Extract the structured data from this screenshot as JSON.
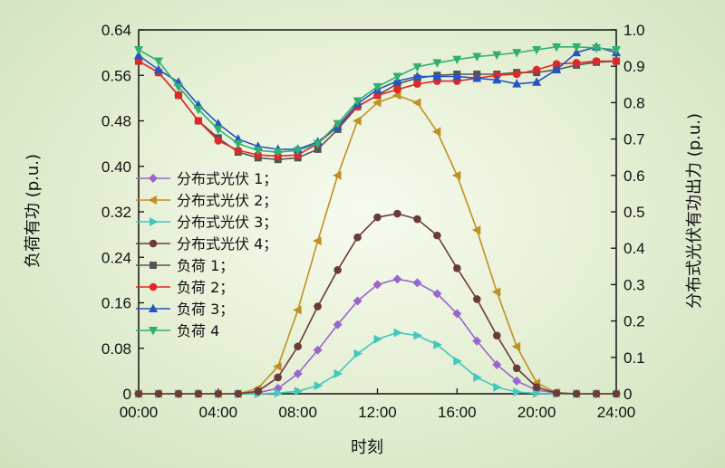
{
  "chart_data": {
    "type": "line",
    "xlabel": "时刻",
    "ylabel_left": "负荷有功 (p.u.)",
    "ylabel_right": "分布式光伏有功出力 (p.u.)",
    "x_ticks": [
      "00:00",
      "04:00",
      "08:00",
      "12:00",
      "16:00",
      "20:00",
      "24:00"
    ],
    "x_hours": [
      0,
      1,
      2,
      3,
      4,
      5,
      6,
      7,
      8,
      9,
      10,
      11,
      12,
      13,
      14,
      15,
      16,
      17,
      18,
      19,
      20,
      21,
      22,
      23,
      24
    ],
    "xlim": [
      0,
      24
    ],
    "ylim_left": [
      0,
      0.64
    ],
    "ylim_right": [
      0,
      1.0
    ],
    "y_ticks_left": [
      "0",
      "0.08",
      "0.16",
      "0.24",
      "0.32",
      "0.40",
      "0.48",
      "0.56",
      "0.64"
    ],
    "y_ticks_right": [
      "0",
      "0.1",
      "0.2",
      "0.3",
      "0.4",
      "0.5",
      "0.6",
      "0.7",
      "0.8",
      "0.9",
      "1.0"
    ],
    "series": [
      {
        "name": "分布式光伏 1；",
        "axis": "right",
        "color": "#9966cc",
        "marker": "diamond",
        "values": [
          0,
          0,
          0,
          0,
          0,
          0,
          0.003,
          0.015,
          0.055,
          0.12,
          0.19,
          0.255,
          0.3,
          0.315,
          0.305,
          0.275,
          0.22,
          0.145,
          0.08,
          0.035,
          0.01,
          0.002,
          0,
          0,
          0
        ]
      },
      {
        "name": "分布式光伏 2；",
        "axis": "right",
        "color": "#c09020",
        "marker": "triangle-left",
        "values": [
          0,
          0,
          0,
          0,
          0,
          0,
          0.015,
          0.075,
          0.23,
          0.42,
          0.6,
          0.75,
          0.8,
          0.82,
          0.8,
          0.72,
          0.6,
          0.45,
          0.28,
          0.13,
          0.03,
          0.003,
          0,
          0,
          0
        ]
      },
      {
        "name": "分布式光伏 3；",
        "axis": "right",
        "color": "#40c8c0",
        "marker": "triangle-right",
        "values": [
          0,
          0,
          0,
          0,
          0,
          0,
          0,
          0.002,
          0.007,
          0.022,
          0.055,
          0.11,
          0.15,
          0.168,
          0.16,
          0.135,
          0.09,
          0.045,
          0.018,
          0.005,
          0.001,
          0,
          0,
          0,
          0
        ]
      },
      {
        "name": "分布式光伏 4；",
        "axis": "right",
        "color": "#6b3a3a",
        "marker": "circle",
        "values": [
          0,
          0,
          0,
          0,
          0,
          0,
          0.007,
          0.045,
          0.13,
          0.24,
          0.34,
          0.43,
          0.485,
          0.495,
          0.48,
          0.435,
          0.345,
          0.26,
          0.16,
          0.07,
          0.018,
          0.002,
          0,
          0,
          0
        ]
      },
      {
        "name": "负荷 1；",
        "axis": "left",
        "color": "#555555",
        "marker": "square",
        "values": [
          0.585,
          0.565,
          0.525,
          0.48,
          0.45,
          0.425,
          0.415,
          0.412,
          0.415,
          0.43,
          0.465,
          0.505,
          0.525,
          0.545,
          0.555,
          0.56,
          0.562,
          0.562,
          0.562,
          0.565,
          0.565,
          0.57,
          0.578,
          0.583,
          0.585
        ]
      },
      {
        "name": "负荷 2；",
        "axis": "left",
        "color": "#e02828",
        "marker": "circle",
        "values": [
          0.585,
          0.565,
          0.525,
          0.48,
          0.445,
          0.428,
          0.42,
          0.418,
          0.42,
          0.44,
          0.47,
          0.505,
          0.525,
          0.535,
          0.545,
          0.55,
          0.55,
          0.555,
          0.56,
          0.562,
          0.57,
          0.58,
          0.582,
          0.585,
          0.585
        ]
      },
      {
        "name": "负荷 3；",
        "axis": "left",
        "color": "#2555c0",
        "marker": "triangle-up",
        "values": [
          0.595,
          0.57,
          0.548,
          0.508,
          0.475,
          0.448,
          0.435,
          0.43,
          0.43,
          0.443,
          0.47,
          0.51,
          0.535,
          0.55,
          0.558,
          0.558,
          0.558,
          0.555,
          0.552,
          0.545,
          0.548,
          0.57,
          0.6,
          0.61,
          0.6
        ]
      },
      {
        "name": "负荷 4",
        "axis": "left",
        "color": "#30b070",
        "marker": "triangle-down",
        "values": [
          0.605,
          0.585,
          0.54,
          0.5,
          0.465,
          0.44,
          0.428,
          0.425,
          0.428,
          0.44,
          0.475,
          0.515,
          0.54,
          0.558,
          0.575,
          0.582,
          0.588,
          0.593,
          0.596,
          0.6,
          0.605,
          0.61,
          0.61,
          0.608,
          0.605
        ]
      }
    ]
  }
}
